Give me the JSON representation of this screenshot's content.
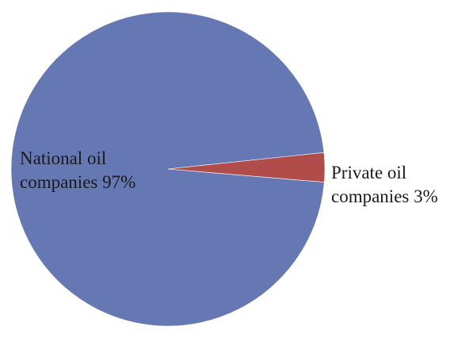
{
  "chart_data": {
    "type": "pie",
    "title": "",
    "slices": [
      {
        "label_line1": "National oil",
        "label_line2": "companies 97%",
        "value": 97,
        "color": "#6578b3"
      },
      {
        "label_line1": "Private oil",
        "label_line2": "companies 3%",
        "value": 3,
        "color": "#b04c4a"
      }
    ],
    "start_angle_deg": 6,
    "legend": "none",
    "label_placement": "National oil companies inside the large slice, left of center; Private oil companies outside the small slice, to the right"
  }
}
